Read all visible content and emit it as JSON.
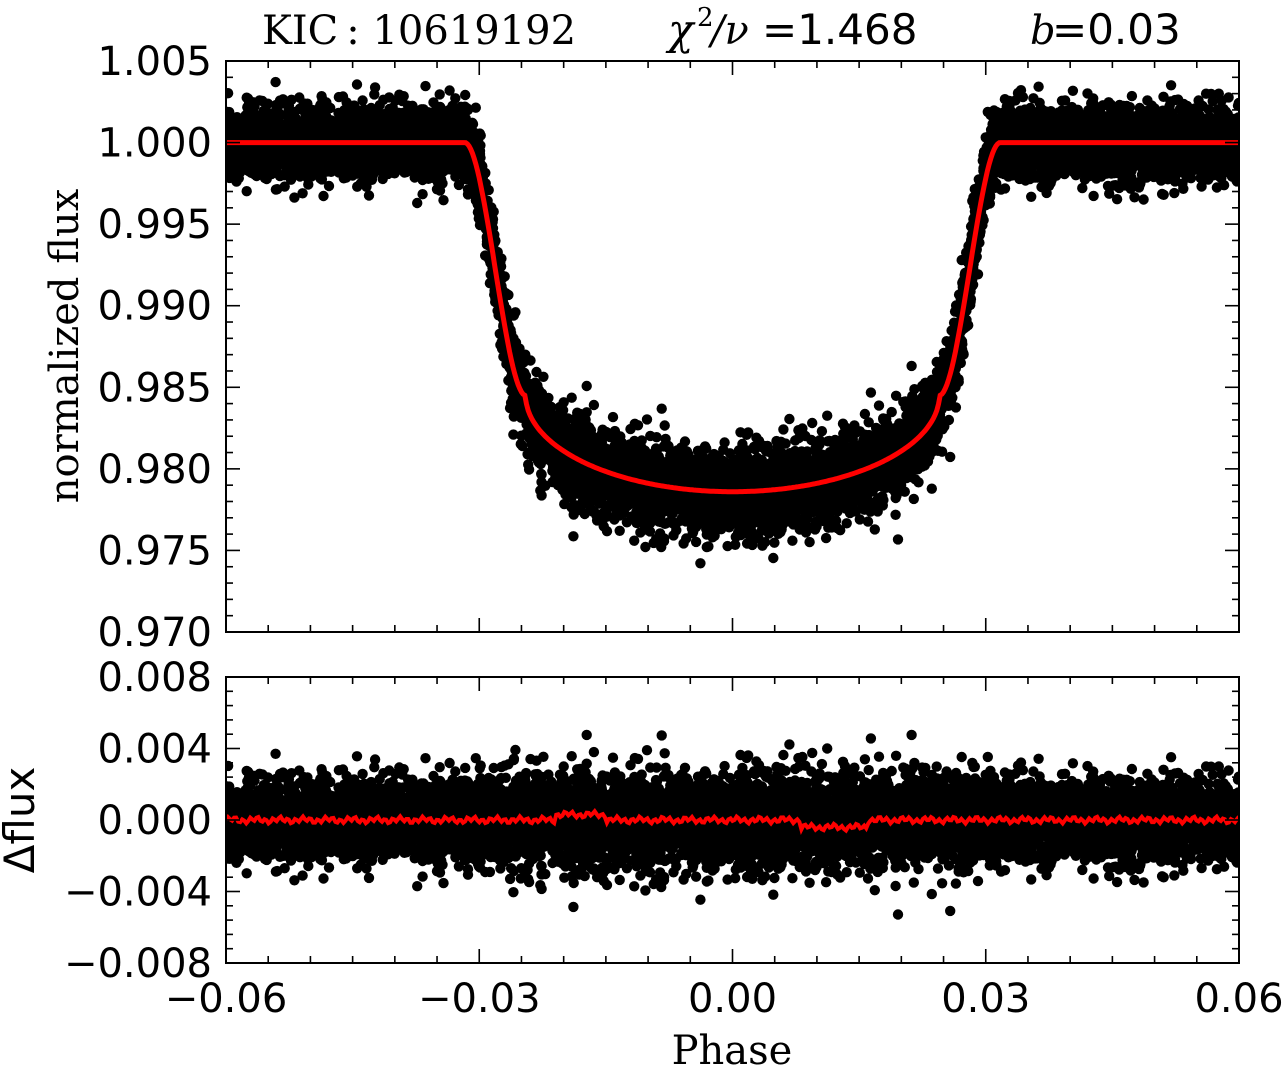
{
  "title": {
    "kic": "KIC :  10619192",
    "chi_symbol": "χ",
    "chi_exp": "2",
    "chi_rest": " /ν",
    "chi_value": "=1.468",
    "b_symbol": "b",
    "b_value": "=0.03"
  },
  "xlabel": "Phase",
  "chart_data": [
    {
      "name": "light curve",
      "type": "scatter",
      "ylabel": "normalized  flux",
      "xlim": [
        -0.06,
        0.06
      ],
      "ylim": [
        0.97,
        1.005
      ],
      "x_ticks": [
        -0.06,
        -0.03,
        0.0,
        0.03,
        0.06
      ],
      "y_ticks": [
        0.97,
        0.975,
        0.98,
        0.985,
        0.99,
        0.995,
        1.0,
        1.005
      ],
      "y_tick_labels": [
        "0.970",
        "0.975",
        "0.980",
        "0.985",
        "0.990",
        "0.995",
        "1.000",
        "1.005"
      ],
      "scatter_color": "#000000",
      "model_color": "#ff0000",
      "transit_model": {
        "depth": 0.0214,
        "ingress_start": 0.0317,
        "ingress_end": 0.0245,
        "flux_at_contact2": 0.9845,
        "out_of_transit": 1.0
      },
      "scatter_noise_sigma": 0.0012
    },
    {
      "name": "residuals",
      "type": "scatter",
      "ylabel": "Δflux",
      "xlim": [
        -0.06,
        0.06
      ],
      "ylim": [
        -0.008,
        0.008
      ],
      "y_ticks": [
        -0.008,
        -0.004,
        0.0,
        0.004,
        0.008
      ],
      "y_tick_labels": [
        "−0.008",
        "−0.004",
        "0.000",
        "0.004",
        "0.008"
      ],
      "scatter_color": "#000000",
      "model_color": "#ff0000",
      "residual_mean": 0.0,
      "scatter_noise_sigma": 0.0012
    }
  ],
  "x_tick_labels": [
    "−0.06",
    "−0.03",
    "0.00",
    "0.03",
    "0.06"
  ]
}
